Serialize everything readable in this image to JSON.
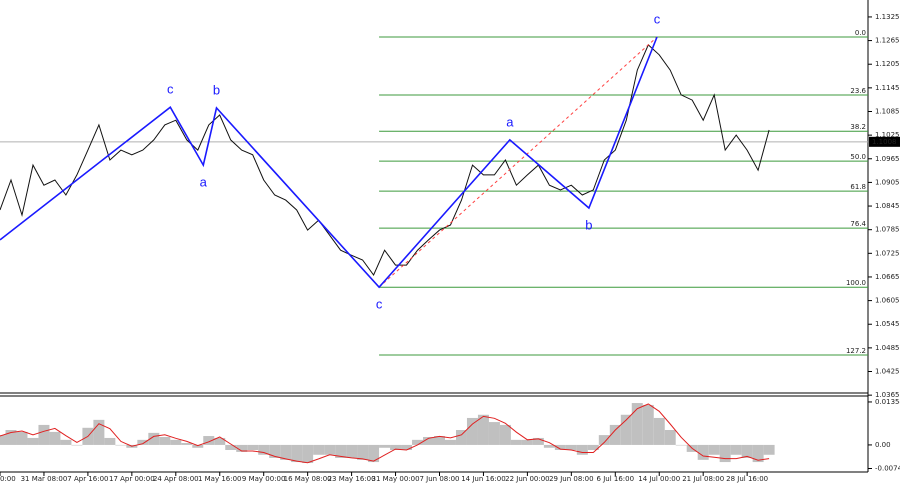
{
  "chart_data": [
    {
      "type": "line",
      "xlim": [
        0,
        79
      ],
      "xticks": [
        {
          "value": 0,
          "label": "0:00"
        },
        {
          "value": 4,
          "label": "31 Mar 08:00"
        },
        {
          "value": 8,
          "label": "7 Apr 16:00"
        },
        {
          "value": 12,
          "label": "17 Apr 00:00"
        },
        {
          "value": 16,
          "label": "24 Apr 08:00"
        },
        {
          "value": 20,
          "label": "1 May 16:00"
        },
        {
          "value": 24,
          "label": "9 May 00:00"
        },
        {
          "value": 28,
          "label": "16 May 08:00"
        },
        {
          "value": 32,
          "label": "23 May 16:00"
        },
        {
          "value": 36,
          "label": "31 May 00:00"
        },
        {
          "value": 40,
          "label": "7 Jun 08:00"
        },
        {
          "value": 44,
          "label": "14 Jun 16:00"
        },
        {
          "value": 48,
          "label": "22 Jun 00:00"
        },
        {
          "value": 52,
          "label": "29 Jun 08:00"
        },
        {
          "value": 56,
          "label": "6 Jul 16:00"
        },
        {
          "value": 60,
          "label": "14 Jul 00:00"
        },
        {
          "value": 64,
          "label": "21 Jul 08:00"
        },
        {
          "value": 68,
          "label": "28 Jul 16:00"
        }
      ],
      "ylim": [
        1.0373,
        1.1368
      ],
      "yticks": [
        1.1325,
        1.1265,
        1.1205,
        1.1145,
        1.1085,
        1.1025,
        1.0965,
        1.0905,
        1.0845,
        1.0785,
        1.0725,
        1.0665,
        1.0605,
        1.0545,
        1.0485,
        1.0425,
        1.0365
      ],
      "color": "#111111",
      "values": [
        1.0835,
        1.0911,
        1.0822,
        1.0949,
        1.0898,
        1.0911,
        1.0873,
        1.0924,
        1.0987,
        1.1051,
        1.0962,
        1.0987,
        1.0975,
        1.0987,
        1.1013,
        1.1051,
        1.1063,
        1.1013,
        1.0987,
        1.1051,
        1.1076,
        1.1013,
        1.0987,
        1.0975,
        1.0911,
        1.0873,
        1.086,
        1.0835,
        1.0784,
        1.0809,
        1.0771,
        1.0733,
        1.072,
        1.0708,
        1.067,
        1.0733,
        1.0695,
        1.0695,
        1.0733,
        1.0759,
        1.0784,
        1.0797,
        1.086,
        1.0949,
        1.0924,
        1.0924,
        1.0962,
        1.0898,
        1.0924,
        1.0949,
        1.0898,
        1.0886,
        1.0898,
        1.0873,
        1.0886,
        1.0962,
        1.0987,
        1.1063,
        1.119,
        1.1254,
        1.1229,
        1.119,
        1.1127,
        1.1114,
        1.1063,
        1.1127,
        1.0987,
        1.1025,
        1.0987,
        1.0936,
        1.1038
      ],
      "waves": {
        "color": "#1a1aff",
        "x": [
          0,
          15.5,
          18.5,
          19.7,
          34.5,
          46.4,
          53.6,
          59.8
        ],
        "values": [
          1.0759,
          1.1096,
          1.0949,
          1.1094,
          1.0639,
          1.1013,
          1.084,
          1.1274
        ],
        "labels": [
          null,
          "c",
          "a",
          "b",
          "c",
          "a",
          "b",
          "c"
        ]
      },
      "fib_levels": {
        "color": "#3c9a3c",
        "labels": [
          "0.0",
          "23.6",
          "38.2",
          "50.0",
          "61.8",
          "76.4",
          "100.0",
          "127.2"
        ],
        "values": [
          1.1274,
          1.1127,
          1.1035,
          1.0959,
          1.0883,
          1.0789,
          1.0639,
          1.0467
        ]
      },
      "last_price": 1.1008
    },
    {
      "type": "bar",
      "ylim": [
        -0.0079,
        0.0151
      ],
      "yticks": [
        0.01354,
        {
          "value": 0,
          "label": "0.00"
        },
        -0.00743
      ],
      "color": "#c0c0c0",
      "values": [
        0.0031,
        0.0047,
        0.0041,
        0.0022,
        0.0063,
        0.0041,
        0.0016,
        0,
        0.0054,
        0.0079,
        0.0022,
        0,
        -0.0009,
        0.0016,
        0.0038,
        0.0025,
        0.0016,
        0.0006,
        -0.0009,
        0.0028,
        0.0022,
        -0.0016,
        -0.0022,
        -0.0016,
        -0.0031,
        -0.0041,
        -0.0047,
        -0.0054,
        -0.0057,
        -0.0031,
        -0.0031,
        -0.0041,
        -0.0041,
        -0.0047,
        -0.0054,
        -0.0009,
        -0.0016,
        -0.0016,
        0.0016,
        0.0025,
        0.0028,
        0.0016,
        0.0047,
        0.0085,
        0.0095,
        0.0072,
        0.0063,
        0.0016,
        0.0016,
        0.0022,
        -0.0009,
        -0.0016,
        -0.0016,
        -0.0031,
        -0.0016,
        0.0031,
        0.0063,
        0.0095,
        0.0132,
        0.0126,
        0.0085,
        0.0047,
        0,
        -0.0022,
        -0.0047,
        -0.0031,
        -0.0054,
        -0.0031,
        -0.0041,
        -0.0054,
        -0.0031
      ],
      "signal": {
        "color": "#e02020",
        "values": [
          0.0028,
          0.0039,
          0.0044,
          0.0032,
          0.0043,
          0.0052,
          0.0029,
          0.0008,
          0.0027,
          0.0067,
          0.0051,
          0.0011,
          -0.0004,
          0.0004,
          0.0027,
          0.0032,
          0.0021,
          0.0011,
          -0.0002,
          0.001,
          0.0025,
          0.0003,
          -0.0019,
          -0.0019,
          -0.0024,
          -0.0036,
          -0.0044,
          -0.0051,
          -0.0056,
          -0.0044,
          -0.0031,
          -0.0036,
          -0.0041,
          -0.0044,
          -0.0051,
          -0.0032,
          -0.0013,
          -0.0016,
          0,
          0.0021,
          0.0027,
          0.0022,
          0.0032,
          0.0066,
          0.009,
          0.0084,
          0.0068,
          0.004,
          0.0016,
          0.0019,
          0.0007,
          -0.0013,
          -0.0016,
          -0.0024,
          -0.0024,
          0.0008,
          0.0047,
          0.0079,
          0.0114,
          0.0129,
          0.0106,
          0.0066,
          0.0024,
          -0.0011,
          -0.0035,
          -0.0039,
          -0.0043,
          -0.0043,
          -0.0036,
          -0.0048,
          -0.0043
        ]
      }
    }
  ]
}
